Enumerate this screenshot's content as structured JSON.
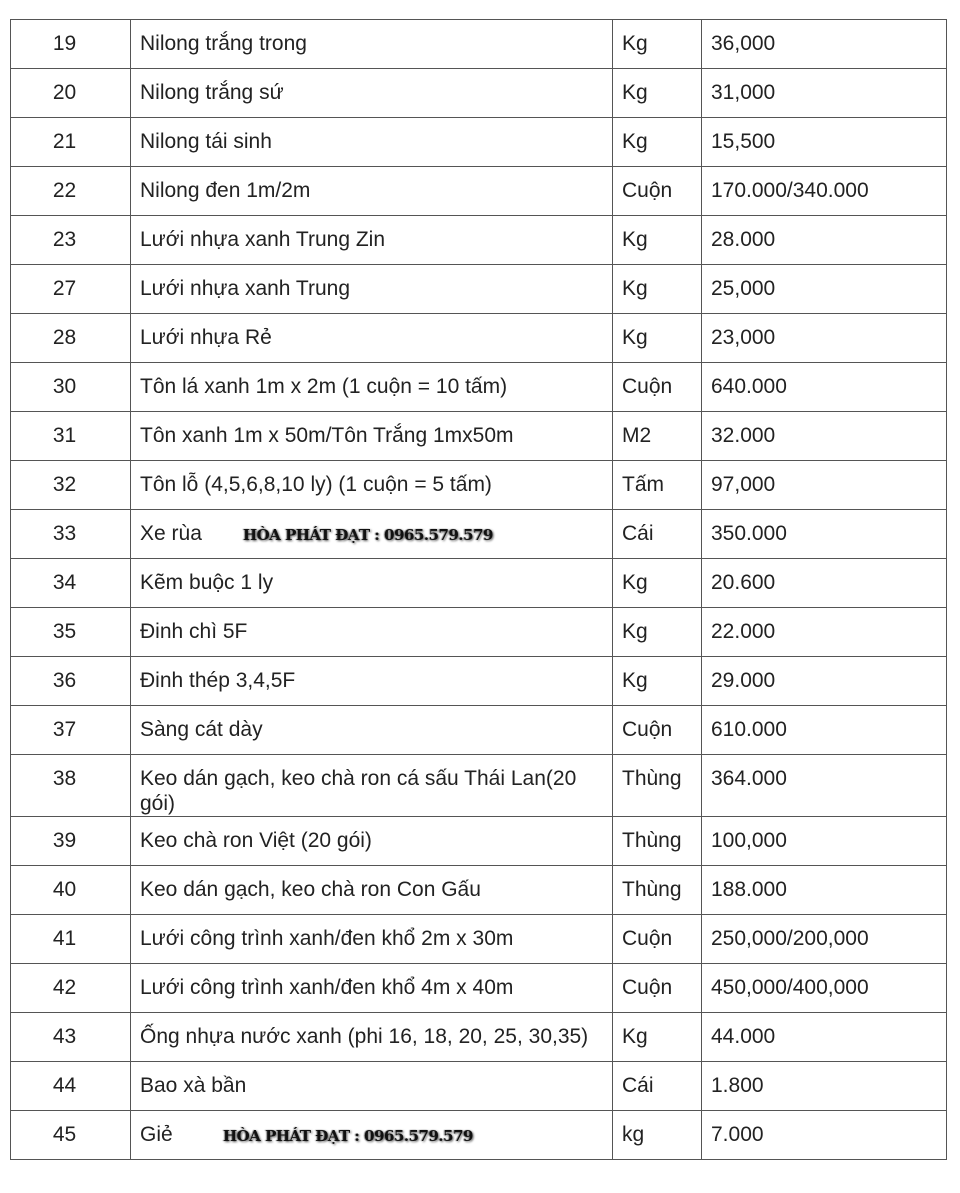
{
  "rows": [
    {
      "no": "19",
      "name": "Nilong trắng trong",
      "unit": "Kg",
      "price": "36,000"
    },
    {
      "no": "20",
      "name": "Nilong trắng sứ",
      "unit": "Kg",
      "price": "31,000"
    },
    {
      "no": "21",
      "name": "Nilong tái sinh",
      "unit": "Kg",
      "price": "15,500"
    },
    {
      "no": "22",
      "name": "Nilong đen 1m/2m",
      "unit": "Cuộn",
      "price": "170.000/340.000"
    },
    {
      "no": "23",
      "name": "Lưới nhựa xanh Trung Zin",
      "unit": "Kg",
      "price": "28.000"
    },
    {
      "no": "27",
      "name": "Lưới nhựa xanh Trung",
      "unit": "Kg",
      "price": "25,000"
    },
    {
      "no": "28",
      "name": "Lưới nhựa Rẻ",
      "unit": "Kg",
      "price": "23,000"
    },
    {
      "no": "30",
      "name": "Tôn lá xanh 1m x 2m (1 cuộn = 10 tấm)",
      "unit": "Cuộn",
      "price": "640.000"
    },
    {
      "no": "31",
      "name": "Tôn xanh 1m x 50m/Tôn Trắng 1mx50m",
      "unit": "M2",
      "price": "32.000"
    },
    {
      "no": "32",
      "name": "Tôn lỗ (4,5,6,8,10 ly) (1 cuộn = 5 tấm)",
      "unit": "Tấm",
      "price": "97,000"
    },
    {
      "no": "33",
      "name": "Xe rùa",
      "unit": "Cái",
      "price": "350.000",
      "watermark": "HÒA PHÁT ĐẠT : 0965.579.579"
    },
    {
      "no": "34",
      "name": "Kẽm buộc 1 ly",
      "unit": "Kg",
      "price": "20.600"
    },
    {
      "no": "35",
      "name": "Đinh chì 5F",
      "unit": "Kg",
      "price": "22.000"
    },
    {
      "no": "36",
      "name": "Đinh thép 3,4,5F",
      "unit": "Kg",
      "price": "29.000"
    },
    {
      "no": "37",
      "name": "Sàng cát dày",
      "unit": "Cuộn",
      "price": "610.000"
    },
    {
      "no": "38",
      "name": "Keo dán gạch, keo chà ron cá sấu Thái Lan(20 gói)",
      "unit": "Thùng",
      "price": "364.000"
    },
    {
      "no": "39",
      "name": "Keo chà ron Việt (20 gói)",
      "unit": "Thùng",
      "price": "100,000"
    },
    {
      "no": "40",
      "name": "Keo dán gạch, keo chà ron Con Gấu",
      "unit": "Thùng",
      "price": "188.000"
    },
    {
      "no": "41",
      "name": "Lưới công trình xanh/đen khổ 2m x 30m",
      "unit": "Cuộn",
      "price": "250,000/200,000"
    },
    {
      "no": "42",
      "name": "Lưới công trình xanh/đen khổ 4m x 40m",
      "unit": "Cuộn",
      "price": "450,000/400,000"
    },
    {
      "no": "43",
      "name": "Ống nhựa nước xanh (phi 16, 18, 20, 25, 30,35)",
      "unit": "Kg",
      "price": "44.000"
    },
    {
      "no": "44",
      "name": "Bao xà bần",
      "unit": "Cái",
      "price": "1.800"
    },
    {
      "no": "45",
      "name": "Giẻ",
      "unit": "kg",
      "price": "7.000",
      "watermark": "HÒA PHÁT ĐẠT : 0965.579.579"
    }
  ]
}
